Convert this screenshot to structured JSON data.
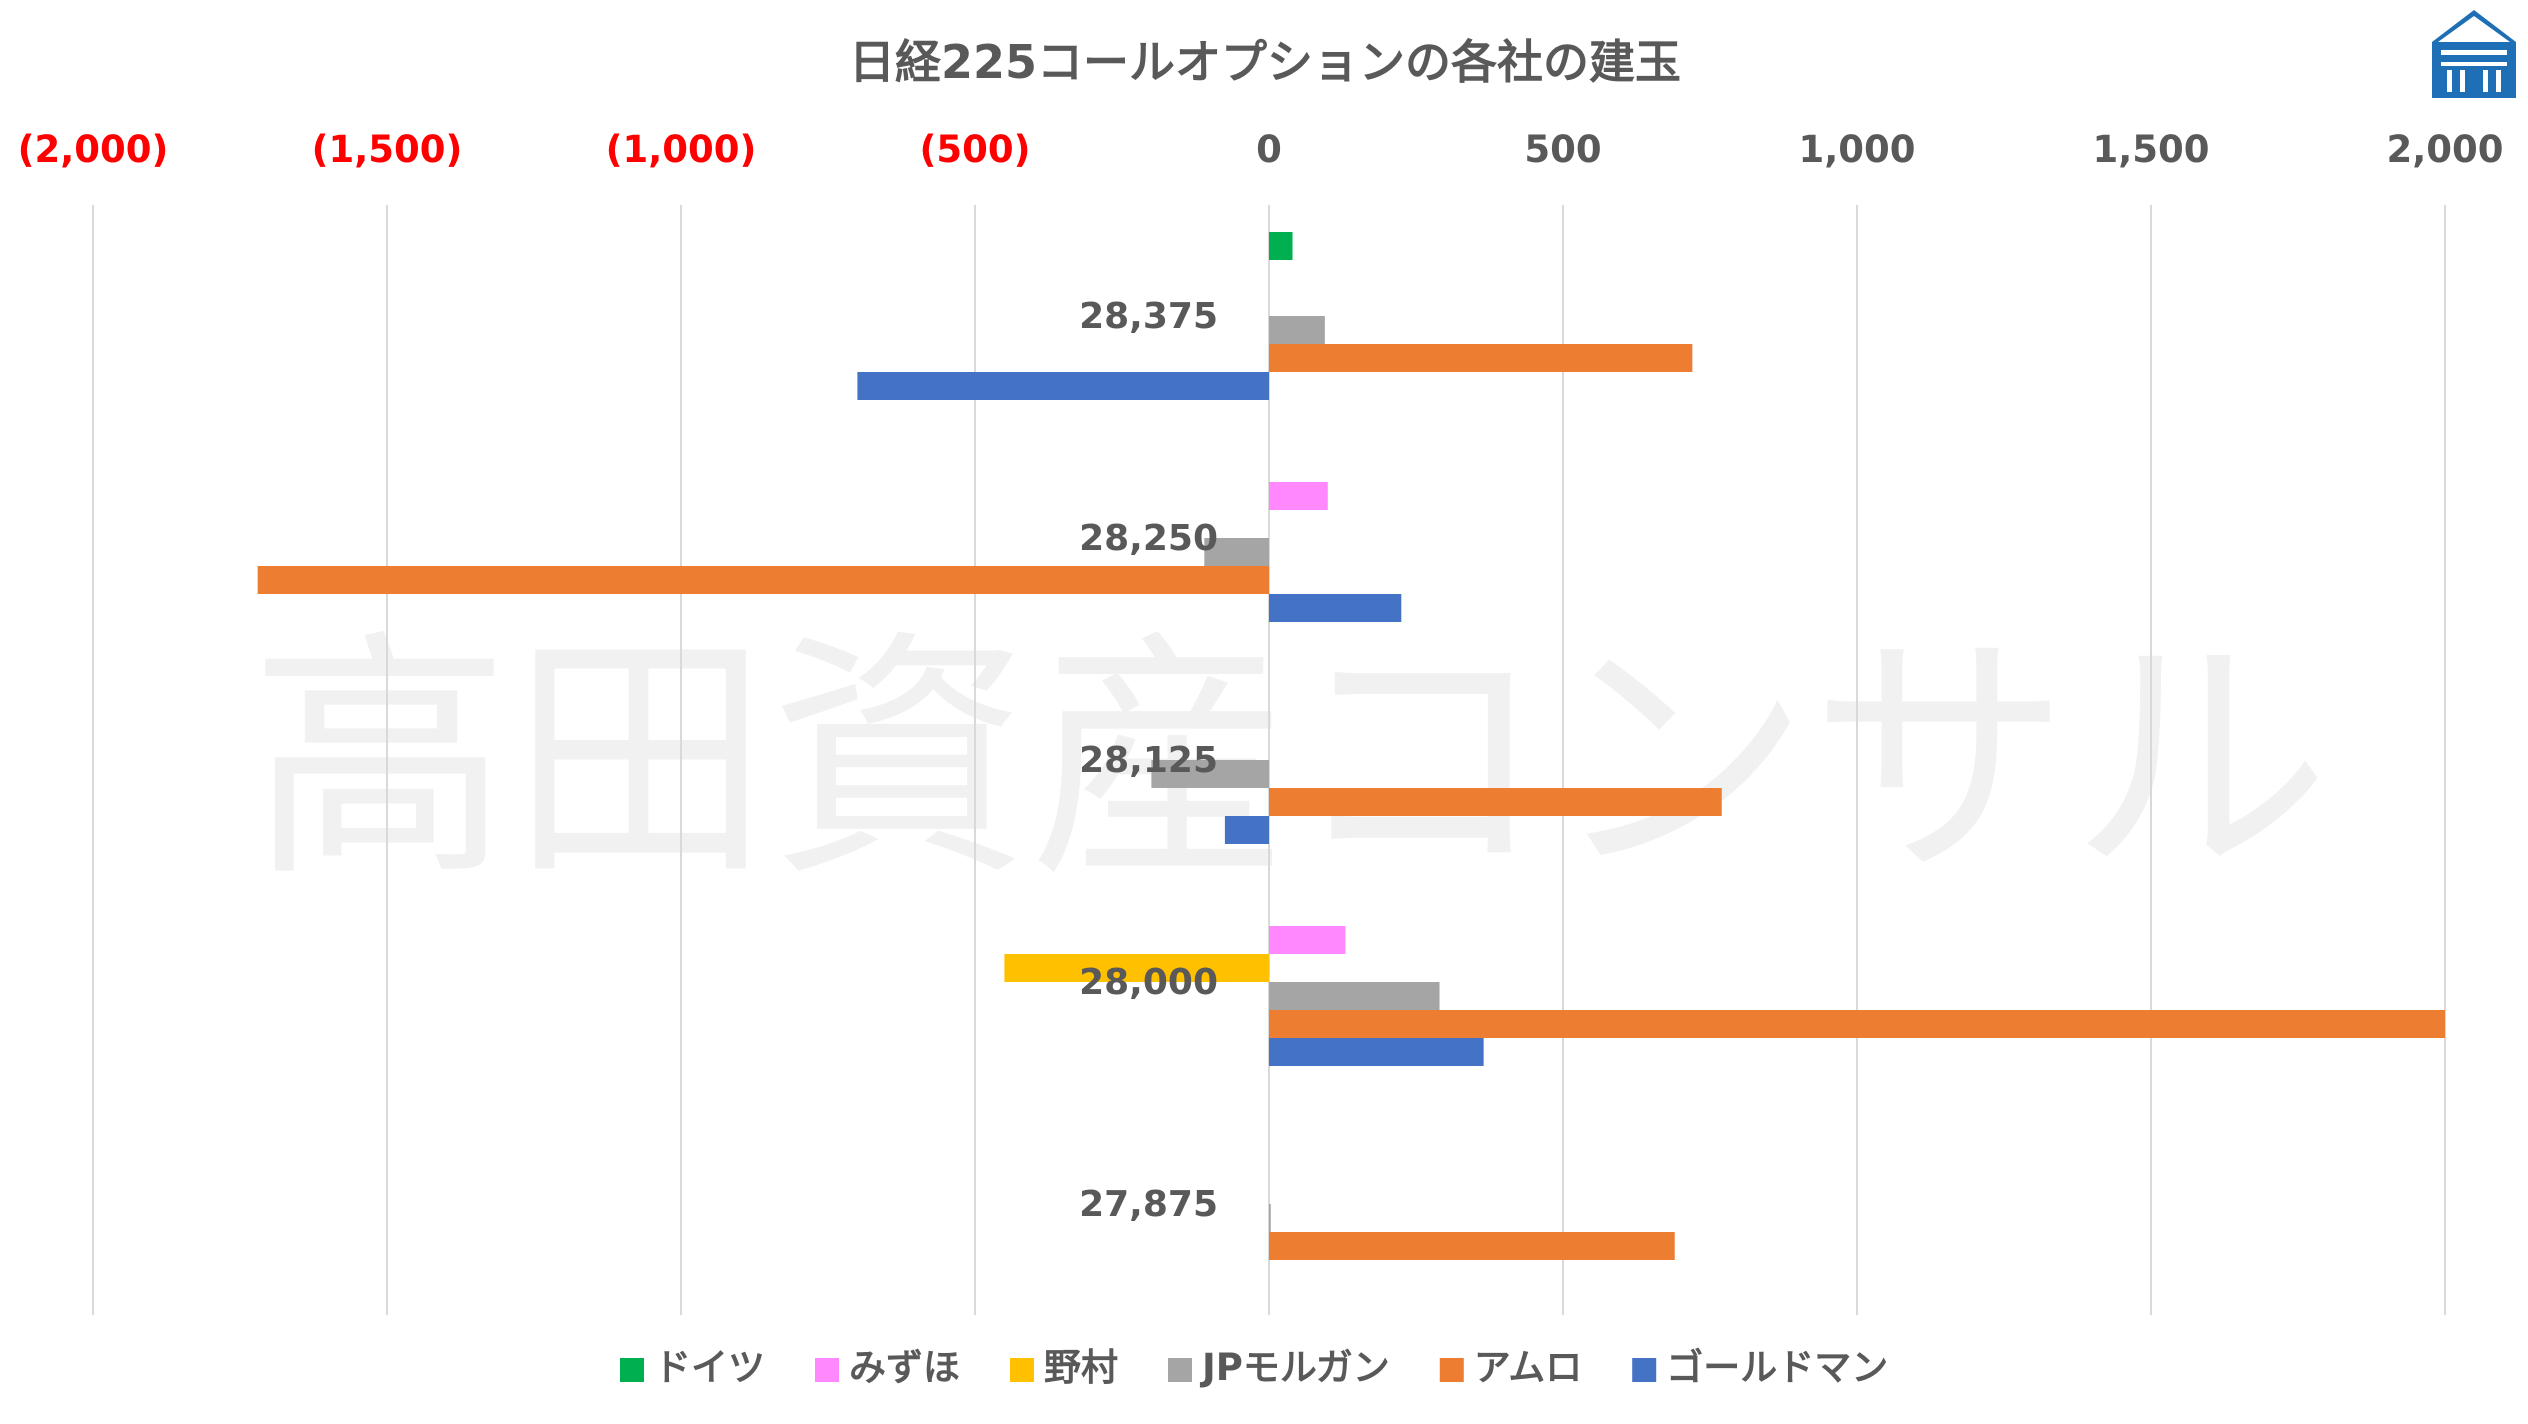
{
  "chart_data": {
    "type": "bar",
    "orientation": "horizontal",
    "title": "日経225コールオプションの各社の建玉",
    "watermark": "高田資産コンサル",
    "xlim": [
      -2000,
      2000
    ],
    "x_ticks": [
      {
        "value": -2000,
        "label": "(2,000)",
        "color": "#ff0000"
      },
      {
        "value": -1500,
        "label": "(1,500)",
        "color": "#ff0000"
      },
      {
        "value": -1000,
        "label": "(1,000)",
        "color": "#ff0000"
      },
      {
        "value": -500,
        "label": "(500)",
        "color": "#ff0000"
      },
      {
        "value": 0,
        "label": "0",
        "color": "#595959"
      },
      {
        "value": 500,
        "label": "500",
        "color": "#595959"
      },
      {
        "value": 1000,
        "label": "1,000",
        "color": "#595959"
      },
      {
        "value": 1500,
        "label": "1,500",
        "color": "#595959"
      },
      {
        "value": 2000,
        "label": "2,000",
        "color": "#595959"
      }
    ],
    "grid": true,
    "legend_position": "bottom",
    "categories": [
      "28,375",
      "28,250",
      "28,125",
      "28,000",
      "27,875"
    ],
    "series": [
      {
        "name": "ドイツ",
        "color": "#00b050",
        "values": [
          40,
          0,
          0,
          0,
          0
        ]
      },
      {
        "name": "みずほ",
        "color": "#ff88ff",
        "values": [
          0,
          100,
          0,
          130,
          0
        ]
      },
      {
        "name": "野村",
        "color": "#ffc000",
        "values": [
          0,
          0,
          0,
          -450,
          0
        ]
      },
      {
        "name": "JPモルガン",
        "color": "#a5a5a5",
        "values": [
          95,
          -110,
          -200,
          290,
          3
        ]
      },
      {
        "name": "アムロ",
        "color": "#ed7d31",
        "values": [
          720,
          -1720,
          770,
          2000,
          690
        ]
      },
      {
        "name": "ゴールドマン",
        "color": "#4472c4",
        "values": [
          -700,
          225,
          -75,
          365,
          0
        ]
      }
    ]
  },
  "logo": {
    "icon": "house-logo-icon",
    "color": "#1e6fb5"
  }
}
